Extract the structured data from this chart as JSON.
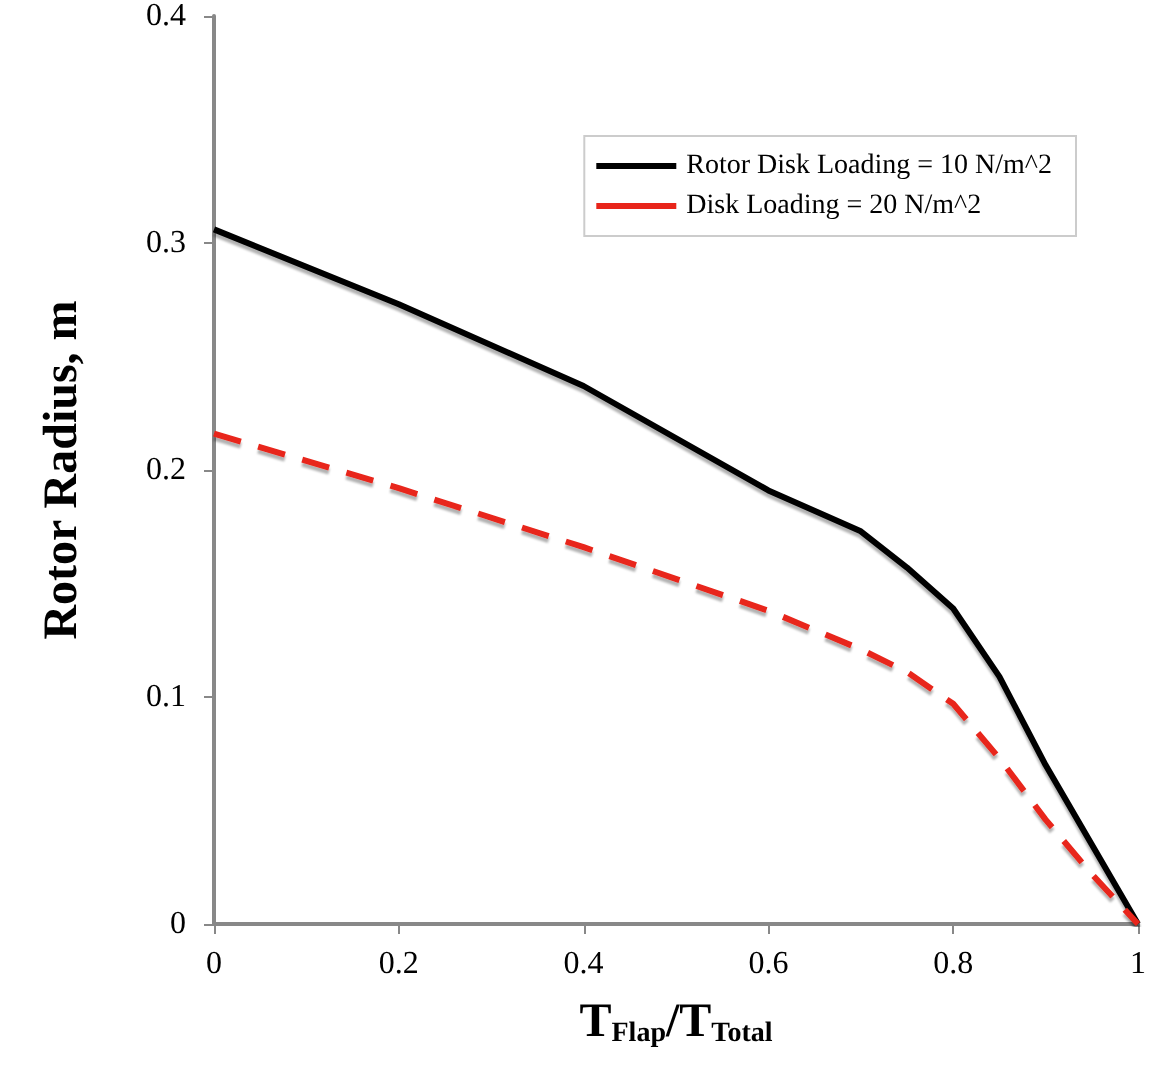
{
  "chart_data": {
    "type": "line",
    "xlabel": "T$_{Flap}$/T$_{Total}$",
    "ylabel": "Rotor Radius, m",
    "x": [
      0,
      0.2,
      0.4,
      0.6,
      0.7,
      0.75,
      0.8,
      0.85,
      0.9,
      0.95,
      1
    ],
    "series": [
      {
        "name": "Rotor Disk Loading = 10 N/m^2",
        "color": "#000000",
        "line_style": "solid",
        "values": [
          0.306,
          0.273,
          0.237,
          0.191,
          0.173,
          0.157,
          0.139,
          0.109,
          0.07,
          0.035,
          0
        ]
      },
      {
        "name": "Disk Loading = 20 N/m^2",
        "color": "#e8251a",
        "line_style": "dashed",
        "values": [
          0.216,
          0.192,
          0.166,
          0.138,
          0.121,
          0.111,
          0.097,
          0.073,
          0.046,
          0.022,
          0
        ]
      }
    ],
    "xlim": [
      0,
      1
    ],
    "xticks": [
      0,
      0.2,
      0.4,
      0.6,
      0.8,
      1
    ],
    "ylim": [
      0,
      0.4
    ],
    "yticks": [
      0,
      0.1,
      0.2,
      0.3,
      0.4
    ],
    "grid": false,
    "legend": "top right",
    "marker": "none"
  }
}
